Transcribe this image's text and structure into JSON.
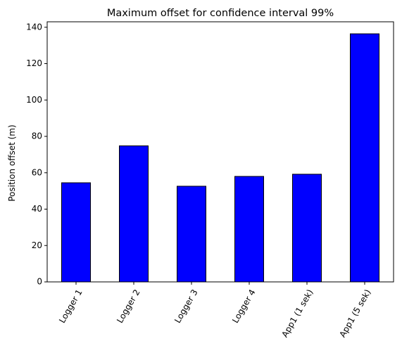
{
  "chart_data": {
    "type": "bar",
    "title": "Maximum offset for confidence interval 99%",
    "xlabel": "",
    "ylabel": "Position offset (m)",
    "categories": [
      "Logger 1",
      "Logger 2",
      "Logger 3",
      "Logger 4",
      "App1 (1 sek)",
      "App1 (5 sek)"
    ],
    "values": [
      54.5,
      74.8,
      52.6,
      58.0,
      59.2,
      136.4
    ],
    "ylim": [
      0,
      143
    ],
    "yticks": [
      0,
      20,
      40,
      60,
      80,
      100,
      120,
      140
    ],
    "grid": false,
    "legend": "none",
    "bar_color": "#0000ff",
    "bar_edge_color": "#000000"
  }
}
